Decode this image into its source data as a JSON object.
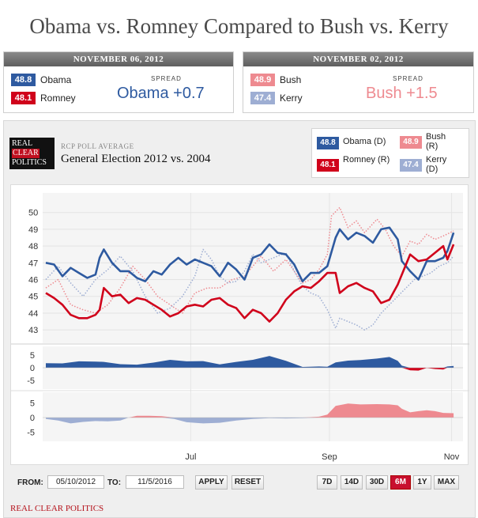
{
  "title": "Obama vs. Romney Compared to Bush vs. Kerry",
  "races": [
    {
      "date": "NOVEMBER 06, 2012",
      "c1": {
        "value": "48.8",
        "name": "Obama",
        "color": "#2e5aa0"
      },
      "c2": {
        "value": "48.1",
        "name": "Romney",
        "color": "#d0021b"
      },
      "spread_label": "SPREAD",
      "spread": "Obama +0.7",
      "spread_color": "#2e5aa0"
    },
    {
      "date": "NOVEMBER 02, 2012",
      "c1": {
        "value": "48.9",
        "name": "Bush",
        "color": "#ee8a90"
      },
      "c2": {
        "value": "47.4",
        "name": "Kerry",
        "color": "#9eaed3"
      },
      "spread_label": "SPREAD",
      "spread": "Bush +1.5",
      "spread_color": "#ee8a90"
    }
  ],
  "logo": [
    "REAL",
    "CLEAR",
    "POLITICS"
  ],
  "rcp_label": "RCP POLL AVERAGE",
  "chart_title": "General Election 2012 vs. 2004",
  "legend": [
    {
      "value": "48.8",
      "label": "Obama (D)",
      "color": "#2e5aa0"
    },
    {
      "value": "48.9",
      "label": "Bush (R)",
      "color": "#ee8a90"
    },
    {
      "value": "48.1",
      "label": "Romney (R)",
      "color": "#d0021b"
    },
    {
      "value": "47.4",
      "label": "Kerry (D)",
      "color": "#9eaed3"
    }
  ],
  "chart_data": {
    "type": "line",
    "x_ticks": [
      {
        "label": "Jul",
        "t": 0.35
      },
      {
        "label": "Sep",
        "t": 0.685
      },
      {
        "label": "Nov",
        "t": 0.98
      }
    ],
    "main": {
      "ylim": [
        42.3,
        50.6
      ],
      "yticks": [
        43,
        44,
        45,
        46,
        47,
        48,
        49,
        50
      ],
      "series": [
        {
          "name": "Obama (D)",
          "color": "#2e5aa0",
          "style": "solid",
          "points": [
            [
              0,
              47
            ],
            [
              0.02,
              46.9
            ],
            [
              0.04,
              46.2
            ],
            [
              0.06,
              46.7
            ],
            [
              0.08,
              46.4
            ],
            [
              0.1,
              46.1
            ],
            [
              0.12,
              46.3
            ],
            [
              0.13,
              47.3
            ],
            [
              0.14,
              47.8
            ],
            [
              0.16,
              47.0
            ],
            [
              0.18,
              46.5
            ],
            [
              0.2,
              46.5
            ],
            [
              0.22,
              46.1
            ],
            [
              0.24,
              45.9
            ],
            [
              0.26,
              46.5
            ],
            [
              0.28,
              46.3
            ],
            [
              0.3,
              46.9
            ],
            [
              0.32,
              47.3
            ],
            [
              0.34,
              46.9
            ],
            [
              0.36,
              47.2
            ],
            [
              0.38,
              47.0
            ],
            [
              0.4,
              46.8
            ],
            [
              0.42,
              46.2
            ],
            [
              0.44,
              47.0
            ],
            [
              0.46,
              46.6
            ],
            [
              0.48,
              46.0
            ],
            [
              0.5,
              47.3
            ],
            [
              0.52,
              47.5
            ],
            [
              0.54,
              48.1
            ],
            [
              0.56,
              47.6
            ],
            [
              0.58,
              47.5
            ],
            [
              0.6,
              46.9
            ],
            [
              0.62,
              45.9
            ],
            [
              0.64,
              46.4
            ],
            [
              0.66,
              46.4
            ],
            [
              0.68,
              46.8
            ],
            [
              0.7,
              48.5
            ],
            [
              0.71,
              49.0
            ],
            [
              0.73,
              48.4
            ],
            [
              0.75,
              48.8
            ],
            [
              0.77,
              48.6
            ],
            [
              0.79,
              48.2
            ],
            [
              0.81,
              49.0
            ],
            [
              0.83,
              49.1
            ],
            [
              0.85,
              48.4
            ],
            [
              0.86,
              47.1
            ],
            [
              0.88,
              46.5
            ],
            [
              0.9,
              46.0
            ],
            [
              0.92,
              47.1
            ],
            [
              0.94,
              47.1
            ],
            [
              0.96,
              47.3
            ],
            [
              0.97,
              47.7
            ],
            [
              0.985,
              48.8
            ]
          ]
        },
        {
          "name": "Romney (R)",
          "color": "#d0021b",
          "style": "solid",
          "points": [
            [
              0,
              45.2
            ],
            [
              0.02,
              44.9
            ],
            [
              0.04,
              44.5
            ],
            [
              0.06,
              43.9
            ],
            [
              0.08,
              43.7
            ],
            [
              0.1,
              43.7
            ],
            [
              0.12,
              43.9
            ],
            [
              0.13,
              44.2
            ],
            [
              0.14,
              45.5
            ],
            [
              0.16,
              45.0
            ],
            [
              0.18,
              45.1
            ],
            [
              0.2,
              44.6
            ],
            [
              0.22,
              44.9
            ],
            [
              0.24,
              44.8
            ],
            [
              0.26,
              44.5
            ],
            [
              0.28,
              44.2
            ],
            [
              0.3,
              43.8
            ],
            [
              0.32,
              44.0
            ],
            [
              0.34,
              44.4
            ],
            [
              0.36,
              44.5
            ],
            [
              0.38,
              44.4
            ],
            [
              0.4,
              44.8
            ],
            [
              0.42,
              44.9
            ],
            [
              0.44,
              44.5
            ],
            [
              0.46,
              44.3
            ],
            [
              0.48,
              43.7
            ],
            [
              0.5,
              44.2
            ],
            [
              0.52,
              44.0
            ],
            [
              0.54,
              43.5
            ],
            [
              0.56,
              44.0
            ],
            [
              0.58,
              44.8
            ],
            [
              0.6,
              45.3
            ],
            [
              0.62,
              45.6
            ],
            [
              0.64,
              45.5
            ],
            [
              0.66,
              45.9
            ],
            [
              0.68,
              46.4
            ],
            [
              0.7,
              46.4
            ],
            [
              0.71,
              45.2
            ],
            [
              0.73,
              45.6
            ],
            [
              0.75,
              45.8
            ],
            [
              0.77,
              45.5
            ],
            [
              0.79,
              45.3
            ],
            [
              0.81,
              44.6
            ],
            [
              0.83,
              44.8
            ],
            [
              0.85,
              45.7
            ],
            [
              0.86,
              46.3
            ],
            [
              0.88,
              47.5
            ],
            [
              0.9,
              47.1
            ],
            [
              0.92,
              47.2
            ],
            [
              0.94,
              47.6
            ],
            [
              0.96,
              48.0
            ],
            [
              0.97,
              47.2
            ],
            [
              0.985,
              48.1
            ]
          ]
        },
        {
          "name": "Bush (R)",
          "color": "#ee8a90",
          "style": "dotted",
          "points": [
            [
              0,
              45.5
            ],
            [
              0.03,
              46.0
            ],
            [
              0.06,
              44.5
            ],
            [
              0.09,
              44.2
            ],
            [
              0.12,
              44.0
            ],
            [
              0.15,
              44.5
            ],
            [
              0.18,
              45.5
            ],
            [
              0.21,
              46.8
            ],
            [
              0.24,
              46.0
            ],
            [
              0.27,
              45.0
            ],
            [
              0.3,
              44.5
            ],
            [
              0.33,
              44.0
            ],
            [
              0.36,
              45.2
            ],
            [
              0.39,
              45.5
            ],
            [
              0.42,
              45.5
            ],
            [
              0.45,
              46.0
            ],
            [
              0.48,
              46.2
            ],
            [
              0.5,
              46.8
            ],
            [
              0.52,
              47.4
            ],
            [
              0.55,
              46.5
            ],
            [
              0.58,
              47.2
            ],
            [
              0.6,
              46.5
            ],
            [
              0.62,
              45.8
            ],
            [
              0.64,
              46.0
            ],
            [
              0.66,
              46.6
            ],
            [
              0.68,
              47.5
            ],
            [
              0.69,
              49.8
            ],
            [
              0.71,
              50.3
            ],
            [
              0.73,
              49.1
            ],
            [
              0.75,
              49.5
            ],
            [
              0.77,
              48.8
            ],
            [
              0.8,
              49.6
            ],
            [
              0.82,
              49.0
            ],
            [
              0.84,
              48.0
            ],
            [
              0.86,
              47.4
            ],
            [
              0.88,
              48.3
            ],
            [
              0.9,
              48.1
            ],
            [
              0.92,
              48.7
            ],
            [
              0.94,
              48.4
            ],
            [
              0.96,
              48.6
            ],
            [
              0.985,
              48.9
            ]
          ]
        },
        {
          "name": "Kerry (D)",
          "color": "#9eaed3",
          "style": "dotted",
          "points": [
            [
              0,
              46.0
            ],
            [
              0.03,
              46.8
            ],
            [
              0.06,
              45.8
            ],
            [
              0.09,
              45.0
            ],
            [
              0.12,
              46.0
            ],
            [
              0.15,
              46.6
            ],
            [
              0.18,
              47.4
            ],
            [
              0.21,
              46.5
            ],
            [
              0.24,
              45.0
            ],
            [
              0.27,
              44.0
            ],
            [
              0.3,
              44.3
            ],
            [
              0.33,
              45.0
            ],
            [
              0.36,
              46.2
            ],
            [
              0.38,
              47.8
            ],
            [
              0.4,
              47.2
            ],
            [
              0.42,
              46.2
            ],
            [
              0.44,
              45.8
            ],
            [
              0.46,
              45.9
            ],
            [
              0.48,
              46.5
            ],
            [
              0.5,
              47.5
            ],
            [
              0.52,
              47.0
            ],
            [
              0.55,
              47.3
            ],
            [
              0.58,
              47.6
            ],
            [
              0.6,
              46.5
            ],
            [
              0.62,
              45.6
            ],
            [
              0.64,
              45.2
            ],
            [
              0.66,
              45.0
            ],
            [
              0.68,
              44.2
            ],
            [
              0.7,
              43.1
            ],
            [
              0.71,
              43.7
            ],
            [
              0.73,
              43.5
            ],
            [
              0.75,
              43.3
            ],
            [
              0.77,
              43.0
            ],
            [
              0.79,
              43.3
            ],
            [
              0.81,
              44.0
            ],
            [
              0.83,
              44.5
            ],
            [
              0.85,
              45.0
            ],
            [
              0.87,
              45.5
            ],
            [
              0.89,
              46.0
            ],
            [
              0.91,
              46.2
            ],
            [
              0.93,
              46.4
            ],
            [
              0.95,
              46.8
            ],
            [
              0.97,
              47.0
            ],
            [
              0.985,
              47.4
            ]
          ]
        }
      ]
    },
    "spread_2012": {
      "ylim": [
        -6.5,
        6.5
      ],
      "yticks": [
        5,
        0,
        -5
      ],
      "pos_color": "#2e5aa0",
      "neg_color": "#d0021b",
      "points": [
        [
          0,
          1.8
        ],
        [
          0.04,
          1.7
        ],
        [
          0.08,
          2.5
        ],
        [
          0.12,
          2.4
        ],
        [
          0.14,
          2.3
        ],
        [
          0.18,
          1.4
        ],
        [
          0.22,
          1.2
        ],
        [
          0.26,
          2.0
        ],
        [
          0.3,
          3.1
        ],
        [
          0.34,
          2.5
        ],
        [
          0.38,
          2.6
        ],
        [
          0.42,
          1.3
        ],
        [
          0.46,
          2.3
        ],
        [
          0.5,
          3.1
        ],
        [
          0.54,
          4.6
        ],
        [
          0.58,
          2.7
        ],
        [
          0.62,
          0.3
        ],
        [
          0.66,
          0.5
        ],
        [
          0.68,
          0.4
        ],
        [
          0.7,
          2.1
        ],
        [
          0.73,
          2.8
        ],
        [
          0.76,
          3.0
        ],
        [
          0.8,
          3.6
        ],
        [
          0.83,
          4.2
        ],
        [
          0.85,
          2.7
        ],
        [
          0.86,
          0.8
        ],
        [
          0.88,
          -1.0
        ],
        [
          0.9,
          -1.1
        ],
        [
          0.92,
          -0.1
        ],
        [
          0.94,
          -0.5
        ],
        [
          0.96,
          -0.7
        ],
        [
          0.97,
          0.5
        ],
        [
          0.985,
          0.7
        ]
      ]
    },
    "spread_2004": {
      "ylim": [
        -6.5,
        6.5
      ],
      "yticks": [
        5,
        0,
        -5
      ],
      "pos_color": "#ee8a90",
      "neg_color": "#9eaed3",
      "points": [
        [
          0,
          -0.5
        ],
        [
          0.03,
          -1.0
        ],
        [
          0.06,
          -2.0
        ],
        [
          0.09,
          -1.5
        ],
        [
          0.12,
          -1.2
        ],
        [
          0.15,
          -1.3
        ],
        [
          0.18,
          -1.0
        ],
        [
          0.2,
          0.0
        ],
        [
          0.22,
          0.6
        ],
        [
          0.25,
          0.6
        ],
        [
          0.28,
          0.5
        ],
        [
          0.31,
          -0.5
        ],
        [
          0.34,
          -1.6
        ],
        [
          0.38,
          -2.0
        ],
        [
          0.42,
          -1.8
        ],
        [
          0.46,
          -1.0
        ],
        [
          0.5,
          -0.5
        ],
        [
          0.54,
          -0.2
        ],
        [
          0.58,
          -0.3
        ],
        [
          0.62,
          -0.2
        ],
        [
          0.66,
          0.3
        ],
        [
          0.68,
          1.0
        ],
        [
          0.7,
          4.0
        ],
        [
          0.73,
          4.8
        ],
        [
          0.76,
          4.5
        ],
        [
          0.8,
          4.6
        ],
        [
          0.83,
          4.5
        ],
        [
          0.85,
          4.2
        ],
        [
          0.86,
          3.0
        ],
        [
          0.88,
          1.8
        ],
        [
          0.9,
          2.2
        ],
        [
          0.92,
          2.5
        ],
        [
          0.94,
          2.2
        ],
        [
          0.96,
          1.6
        ],
        [
          0.985,
          1.5
        ]
      ]
    }
  },
  "controls": {
    "from_label": "FROM:",
    "from_value": "05/10/2012",
    "to_label": "TO:",
    "to_value": "11/5/2016",
    "apply": "APPLY",
    "reset": "RESET",
    "ranges": [
      "7D",
      "14D",
      "30D",
      "6M",
      "1Y",
      "MAX"
    ],
    "active_range": "6M"
  },
  "footer": "REAL CLEAR POLITICS"
}
